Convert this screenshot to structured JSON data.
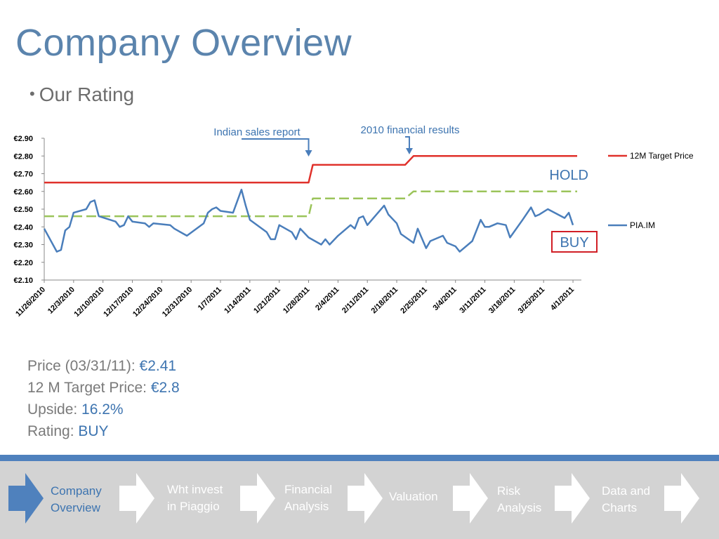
{
  "slide": {
    "title": "Company Overview",
    "bullet": "Our Rating"
  },
  "summary": {
    "price_label": "Price (03/31/11): ",
    "price_value": "€2.41",
    "target_label": "12 M Target Price: ",
    "target_value": "€2.8",
    "upside_label": "Upside: ",
    "upside_value": "16.2%",
    "rating_label": "Rating: ",
    "rating_value": "BUY"
  },
  "nav": {
    "items": [
      {
        "label_line1": "Company",
        "label_line2": "Overview"
      },
      {
        "label_line1": "Wht invest",
        "label_line2": "in Piaggio"
      },
      {
        "label_line1": "Financial",
        "label_line2": "Analysis"
      },
      {
        "label_line1": "Valuation",
        "label_line2": ""
      },
      {
        "label_line1": "Risk",
        "label_line2": "Analysis"
      },
      {
        "label_line1": "Data and",
        "label_line2": "Charts"
      }
    ],
    "colors": {
      "bar": "#d3d3d3",
      "line": "#4f81bd",
      "active_arrow": "#4f81bd",
      "arrow": "#ffffff"
    }
  },
  "chart_data": {
    "type": "line",
    "title": "",
    "xlabel": "",
    "ylabel": "",
    "ylim": [
      2.1,
      2.9
    ],
    "y_ticks": [
      "€2.10",
      "€2.20",
      "€2.30",
      "€2.40",
      "€2.50",
      "€2.60",
      "€2.70",
      "€2.80",
      "€2.90"
    ],
    "y_tick_values": [
      2.1,
      2.2,
      2.3,
      2.4,
      2.5,
      2.6,
      2.7,
      2.8,
      2.9
    ],
    "x_ticks": [
      "11/26/2010",
      "12/3/2010",
      "12/10/2010",
      "12/17/2010",
      "12/24/2010",
      "12/31/2010",
      "1/7/2011",
      "1/14/2011",
      "1/21/2011",
      "1/28/2011",
      "2/4/2011",
      "2/11/2011",
      "2/18/2011",
      "2/25/2011",
      "3/4/2011",
      "3/11/2011",
      "3/18/2011",
      "3/25/2011",
      "4/1/2011"
    ],
    "x_range_days": [
      0,
      128
    ],
    "grid": false,
    "legend_position": "right",
    "series": [
      {
        "name": "12M Target Price",
        "color": "#e0312b",
        "style": "solid",
        "points": [
          [
            0,
            2.65
          ],
          [
            63,
            2.65
          ],
          [
            64,
            2.75
          ],
          [
            86,
            2.75
          ],
          [
            88,
            2.8
          ],
          [
            127,
            2.8
          ]
        ]
      },
      {
        "name": "",
        "color": "#9bc45a",
        "style": "dashed",
        "points": [
          [
            0,
            2.46
          ],
          [
            63,
            2.46
          ],
          [
            64,
            2.56
          ],
          [
            86,
            2.56
          ],
          [
            88,
            2.6
          ],
          [
            127,
            2.6
          ]
        ]
      },
      {
        "name": "PIA.IM",
        "color": "#4a7ebb",
        "style": "solid",
        "points": [
          [
            0,
            2.39
          ],
          [
            3,
            2.26
          ],
          [
            4,
            2.27
          ],
          [
            5,
            2.38
          ],
          [
            6,
            2.4
          ],
          [
            7,
            2.48
          ],
          [
            10,
            2.5
          ],
          [
            11,
            2.54
          ],
          [
            12,
            2.55
          ],
          [
            13,
            2.46
          ],
          [
            17,
            2.43
          ],
          [
            18,
            2.4
          ],
          [
            19,
            2.41
          ],
          [
            20,
            2.46
          ],
          [
            21,
            2.43
          ],
          [
            24,
            2.42
          ],
          [
            25,
            2.4
          ],
          [
            26,
            2.42
          ],
          [
            30,
            2.41
          ],
          [
            31,
            2.39
          ],
          [
            34,
            2.35
          ],
          [
            38,
            2.42
          ],
          [
            39,
            2.48
          ],
          [
            40,
            2.5
          ],
          [
            41,
            2.51
          ],
          [
            42,
            2.49
          ],
          [
            45,
            2.48
          ],
          [
            47,
            2.61
          ],
          [
            48,
            2.52
          ],
          [
            49,
            2.44
          ],
          [
            53,
            2.37
          ],
          [
            54,
            2.33
          ],
          [
            55,
            2.33
          ],
          [
            56,
            2.41
          ],
          [
            59,
            2.37
          ],
          [
            60,
            2.33
          ],
          [
            61,
            2.39
          ],
          [
            63,
            2.34
          ],
          [
            66,
            2.3
          ],
          [
            67,
            2.33
          ],
          [
            68,
            2.3
          ],
          [
            70,
            2.35
          ],
          [
            73,
            2.41
          ],
          [
            74,
            2.39
          ],
          [
            75,
            2.45
          ],
          [
            76,
            2.46
          ],
          [
            77,
            2.41
          ],
          [
            81,
            2.52
          ],
          [
            82,
            2.47
          ],
          [
            84,
            2.42
          ],
          [
            85,
            2.36
          ],
          [
            88,
            2.31
          ],
          [
            89,
            2.39
          ],
          [
            91,
            2.28
          ],
          [
            92,
            2.32
          ],
          [
            95,
            2.35
          ],
          [
            96,
            2.31
          ],
          [
            98,
            2.29
          ],
          [
            99,
            2.26
          ],
          [
            102,
            2.32
          ],
          [
            104,
            2.44
          ],
          [
            105,
            2.4
          ],
          [
            106,
            2.4
          ],
          [
            108,
            2.42
          ],
          [
            110,
            2.41
          ],
          [
            111,
            2.34
          ],
          [
            114,
            2.44
          ],
          [
            116,
            2.51
          ],
          [
            117,
            2.46
          ],
          [
            118,
            2.47
          ],
          [
            120,
            2.5
          ],
          [
            124,
            2.45
          ],
          [
            125,
            2.48
          ],
          [
            126,
            2.41
          ]
        ]
      }
    ],
    "annotations": [
      {
        "text": "Indian sales report",
        "x": 63
      },
      {
        "text": "2010 financial results",
        "x": 87
      }
    ],
    "rating_labels": [
      {
        "text": "HOLD",
        "boxed": false
      },
      {
        "text": "BUY",
        "boxed": true,
        "box_color": "#d11f26"
      }
    ]
  }
}
